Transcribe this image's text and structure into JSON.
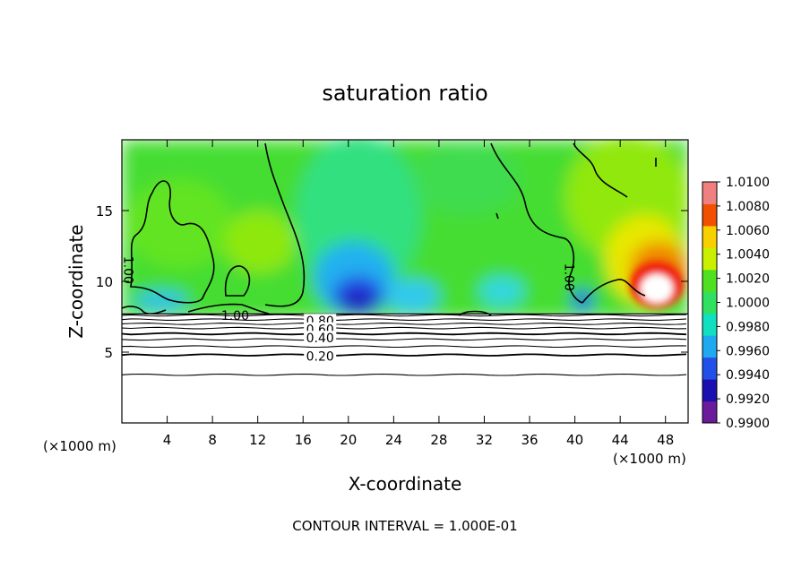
{
  "chart_data": {
    "type": "heatmap",
    "title": "saturation ratio",
    "xlabel": "X-coordinate",
    "ylabel": "Z-coordinate",
    "x_unit_left": "(×1000 m)",
    "x_unit_right": "(×1000 m)",
    "footer": "CONTOUR INTERVAL = 1.000E-01",
    "xlim": [
      0,
      50
    ],
    "ylim": [
      0,
      20
    ],
    "x_ticks": [
      4,
      8,
      12,
      16,
      20,
      24,
      28,
      32,
      36,
      40,
      44,
      48
    ],
    "y_ticks": [
      5,
      10,
      15
    ],
    "colorbar": {
      "min": 0.99,
      "max": 1.01,
      "labels": [
        "0.9900",
        "0.9920",
        "0.9940",
        "0.9960",
        "0.9980",
        "1.0000",
        "1.0020",
        "1.0040",
        "1.0060",
        "1.0080",
        "1.0100"
      ],
      "colors": [
        "#6a1a9a",
        "#1a10b0",
        "#2050e8",
        "#20a8f0",
        "#10e0c0",
        "#30e060",
        "#50e020",
        "#c8f000",
        "#f8d000",
        "#f05000",
        "#f08080"
      ]
    },
    "contour_labels": [
      {
        "text": "1.00",
        "x": 0.6,
        "z": 10.8
      },
      {
        "text": "1.00",
        "x": 39.5,
        "z": 10.3
      },
      {
        "text": "1.00",
        "x": 10,
        "z": 7.6
      },
      {
        "text": "0.80",
        "x": 17.5,
        "z": 7.2
      },
      {
        "text": "0.60",
        "x": 17.5,
        "z": 6.6
      },
      {
        "text": "0.40",
        "x": 17.5,
        "z": 6.0
      },
      {
        "text": "0.20",
        "x": 17.5,
        "z": 4.7
      }
    ],
    "isolines_z": [
      3.4,
      4.8,
      5.4,
      5.9,
      6.3,
      6.7,
      7.0,
      7.3,
      7.6
    ],
    "saturated_layer_top_z": 7.7
  }
}
